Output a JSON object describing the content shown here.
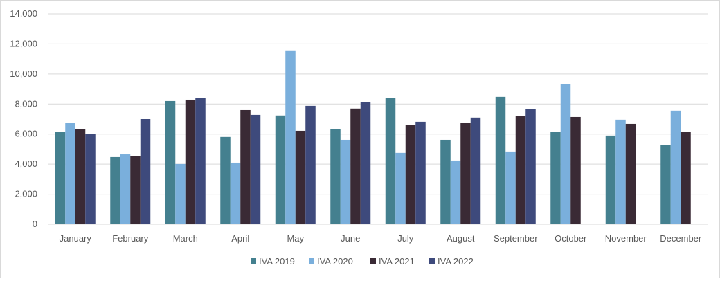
{
  "chart_data": {
    "type": "bar",
    "title": "",
    "xlabel": "",
    "ylabel": "",
    "ylim": [
      0,
      14000
    ],
    "yticks": [
      0,
      2000,
      4000,
      6000,
      8000,
      10000,
      12000,
      14000
    ],
    "ytick_labels": [
      "0",
      "2,000",
      "4,000",
      "6,000",
      "8,000",
      "10,000",
      "12,000",
      "14,000"
    ],
    "grid": true,
    "legend_position": "bottom",
    "categories": [
      "January",
      "February",
      "March",
      "April",
      "May",
      "June",
      "July",
      "August",
      "September",
      "October",
      "November",
      "December"
    ],
    "series": [
      {
        "name": "IVA 2019",
        "color": "#44808f",
        "values": [
          6130,
          4470,
          8200,
          5810,
          7240,
          6310,
          8390,
          5620,
          8480,
          6130,
          5900,
          5250
        ]
      },
      {
        "name": "IVA 2020",
        "color": "#7aafdc",
        "values": [
          6730,
          4650,
          4010,
          4100,
          11570,
          5620,
          4750,
          4240,
          4840,
          9310,
          6960,
          7560
        ]
      },
      {
        "name": "IVA 2021",
        "color": "#3a2a35",
        "values": [
          6310,
          4520,
          8290,
          7600,
          6220,
          7700,
          6590,
          6770,
          7190,
          7140,
          6680,
          6130
        ]
      },
      {
        "name": "IVA 2022",
        "color": "#3e4a7c",
        "values": [
          5990,
          7000,
          8390,
          7280,
          7880,
          8110,
          6820,
          7100,
          7650,
          null,
          null,
          null
        ]
      }
    ]
  }
}
